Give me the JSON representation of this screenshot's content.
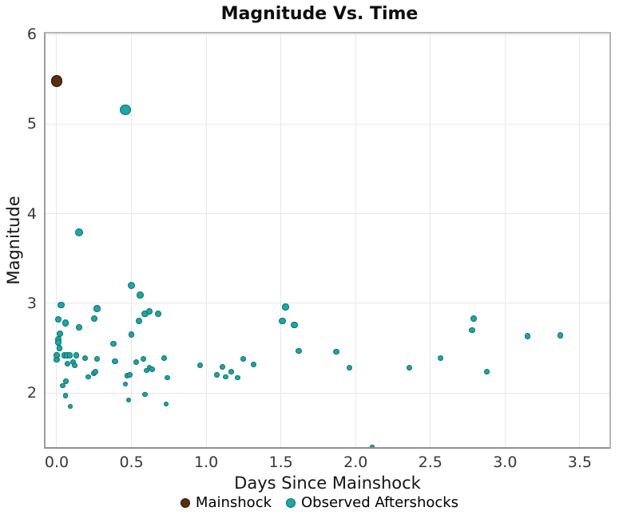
{
  "chart_data": {
    "type": "scatter",
    "title": "Magnitude Vs. Time",
    "xlabel": "Days Since Mainshock",
    "ylabel": "Magnitude",
    "xlim": [
      -0.0855,
      3.709
    ],
    "ylim": [
      1.377,
      6.028
    ],
    "grid": true,
    "legend_position": "bottom-center",
    "xticks": {
      "values": [
        0.0,
        0.5,
        1.0,
        1.5,
        2.0,
        2.5,
        3.0,
        3.5
      ],
      "labels": [
        "0.0",
        "0.5",
        "1.0",
        "1.5",
        "2.0",
        "2.5",
        "3.0",
        "3.5"
      ]
    },
    "yticks": {
      "values": [
        2,
        3,
        4,
        5,
        6
      ],
      "labels": [
        "2",
        "3",
        "4",
        "5",
        "6"
      ]
    },
    "series": [
      {
        "name": "Mainshock",
        "color": "#59300d",
        "edge_color": "#2a1503",
        "points": [
          [
            0.0,
            5.48
          ]
        ]
      },
      {
        "name": "Observed Aftershocks",
        "color": "#17a9a7",
        "edge_color": "#0c6e6c",
        "points": [
          [
            0.03,
            2.98
          ],
          [
            0.15,
            3.79
          ],
          [
            0.46,
            5.16
          ],
          [
            0.5,
            3.2
          ],
          [
            0.56,
            3.09
          ],
          [
            0.01,
            2.82
          ],
          [
            0.06,
            2.78
          ],
          [
            0.15,
            2.73
          ],
          [
            0.25,
            2.83
          ],
          [
            0.27,
            2.94
          ],
          [
            0.55,
            2.8
          ],
          [
            0.59,
            2.88
          ],
          [
            0.62,
            2.91
          ],
          [
            0.68,
            2.88
          ],
          [
            0.02,
            2.66
          ],
          [
            0.01,
            2.6
          ],
          [
            0.01,
            2.56
          ],
          [
            0.02,
            2.5
          ],
          [
            0.0,
            2.42
          ],
          [
            0.0,
            2.37
          ],
          [
            0.05,
            2.42
          ],
          [
            0.07,
            2.42
          ],
          [
            0.09,
            2.42
          ],
          [
            0.13,
            2.42
          ],
          [
            0.07,
            2.33
          ],
          [
            0.11,
            2.34
          ],
          [
            0.12,
            2.31
          ],
          [
            0.19,
            2.39
          ],
          [
            0.27,
            2.38
          ],
          [
            0.38,
            2.55
          ],
          [
            0.39,
            2.35
          ],
          [
            0.5,
            2.65
          ],
          [
            0.53,
            2.34
          ],
          [
            0.58,
            2.38
          ],
          [
            0.04,
            2.08
          ],
          [
            0.06,
            2.13
          ],
          [
            0.06,
            1.97
          ],
          [
            0.09,
            1.85
          ],
          [
            0.21,
            2.18
          ],
          [
            0.25,
            2.22
          ],
          [
            0.26,
            2.24
          ],
          [
            0.46,
            2.1
          ],
          [
            0.47,
            2.19
          ],
          [
            0.49,
            2.2
          ],
          [
            0.48,
            1.92
          ],
          [
            0.59,
            1.98
          ],
          [
            0.6,
            2.25
          ],
          [
            0.62,
            2.28
          ],
          [
            0.64,
            2.26
          ],
          [
            0.72,
            2.39
          ],
          [
            0.74,
            2.17
          ],
          [
            0.73,
            1.88
          ],
          [
            0.96,
            2.31
          ],
          [
            1.07,
            2.2
          ],
          [
            1.11,
            2.29
          ],
          [
            1.13,
            2.18
          ],
          [
            1.17,
            2.24
          ],
          [
            1.21,
            2.17
          ],
          [
            1.25,
            2.38
          ],
          [
            1.32,
            2.32
          ],
          [
            1.51,
            2.8
          ],
          [
            1.53,
            2.96
          ],
          [
            1.59,
            2.76
          ],
          [
            1.62,
            2.47
          ],
          [
            1.87,
            2.46
          ],
          [
            1.96,
            2.28
          ],
          [
            2.11,
            1.4
          ],
          [
            2.36,
            2.28
          ],
          [
            2.57,
            2.39
          ],
          [
            2.78,
            2.7
          ],
          [
            2.79,
            2.83
          ],
          [
            2.88,
            2.24
          ],
          [
            3.15,
            2.63
          ],
          [
            3.37,
            2.64
          ]
        ]
      }
    ]
  }
}
